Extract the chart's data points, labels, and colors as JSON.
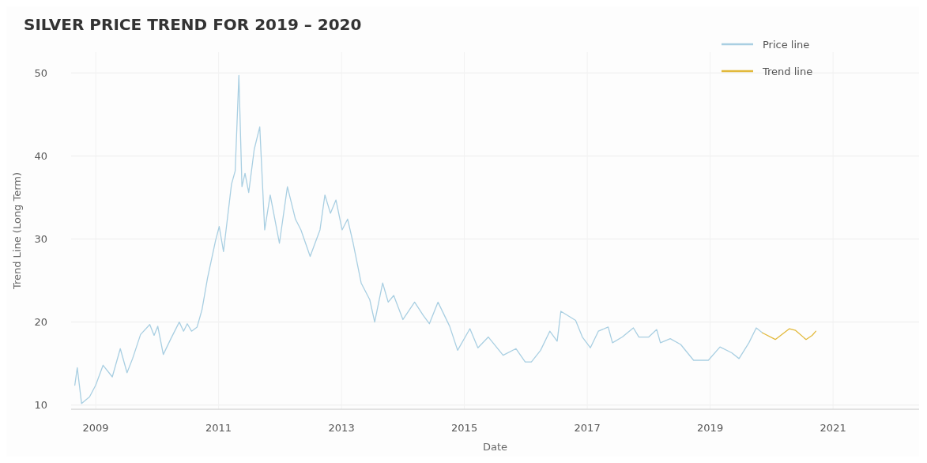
{
  "chart_data": {
    "type": "line",
    "title": "SILVER PRICE TREND FOR 2019 – 2020",
    "xlabel": "Date",
    "ylabel": "Trend Line (Long Term)",
    "xlim": [
      2008.6,
      2022.4
    ],
    "xticks": [
      2009,
      2011,
      2013,
      2015,
      2017,
      2019,
      2021
    ],
    "ylim": [
      9.5,
      52.5
    ],
    "yticks": [
      10,
      20,
      30,
      40,
      50
    ],
    "grid": true,
    "legend": "top right",
    "marker": "none",
    "line_style": "solid",
    "series": [
      {
        "name": "Price line",
        "color": "#a9cfe2",
        "x": [
          2008.66,
          2008.7,
          2008.77,
          2008.9,
          2009.0,
          2009.12,
          2009.27,
          2009.4,
          2009.51,
          2009.6,
          2009.73,
          2009.88,
          2009.95,
          2010.01,
          2010.1,
          2010.23,
          2010.36,
          2010.43,
          2010.49,
          2010.56,
          2010.65,
          2010.73,
          2010.82,
          2010.95,
          2011.01,
          2011.08,
          2011.21,
          2011.27,
          2011.33,
          2011.38,
          2011.43,
          2011.49,
          2011.58,
          2011.67,
          2011.75,
          2011.84,
          2011.99,
          2012.12,
          2012.25,
          2012.34,
          2012.49,
          2012.65,
          2012.73,
          2012.82,
          2012.91,
          2013.01,
          2013.1,
          2013.19,
          2013.32,
          2013.46,
          2013.54,
          2013.67,
          2013.76,
          2013.85,
          2014.0,
          2014.19,
          2014.33,
          2014.43,
          2014.57,
          2014.76,
          2014.89,
          2015.09,
          2015.22,
          2015.39,
          2015.63,
          2015.84,
          2015.99,
          2016.09,
          2016.24,
          2016.39,
          2016.51,
          2016.57,
          2016.68,
          2016.81,
          2016.92,
          2017.05,
          2017.18,
          2017.34,
          2017.41,
          2017.57,
          2017.75,
          2017.84,
          2018.0,
          2018.13,
          2018.19,
          2018.35,
          2018.52,
          2018.73,
          2018.97,
          2019.16,
          2019.35,
          2019.47,
          2019.63,
          2019.75,
          2019.85
        ],
        "values": [
          12.4,
          14.5,
          10.2,
          11,
          12.4,
          14.8,
          13.4,
          16.8,
          13.9,
          15.6,
          18.5,
          19.7,
          18.4,
          19.5,
          16.1,
          18.1,
          20,
          18.9,
          19.8,
          18.9,
          19.4,
          21.5,
          25.3,
          29.8,
          31.5,
          28.5,
          36.6,
          38.2,
          49.7,
          36.3,
          37.9,
          35.6,
          40.8,
          43.5,
          31.1,
          35.3,
          29.5,
          36.3,
          32.4,
          31.1,
          27.9,
          31.1,
          35.3,
          33.1,
          34.7,
          31.1,
          32.4,
          29.5,
          24.7,
          22.7,
          20,
          24.7,
          22.4,
          23.2,
          20.3,
          22.4,
          20.8,
          19.8,
          22.4,
          19.5,
          16.6,
          19.2,
          16.9,
          18.2,
          16,
          16.8,
          15.2,
          15.2,
          16.6,
          18.9,
          17.7,
          21.3,
          20.8,
          20.2,
          18.2,
          16.9,
          18.9,
          19.4,
          17.5,
          18.2,
          19.3,
          18.2,
          18.2,
          19.1,
          17.5,
          18,
          17.3,
          15.4,
          15.4,
          17,
          16.3,
          15.6,
          17.5,
          19.3,
          18.7
        ]
      },
      {
        "name": "Trend line",
        "color": "#e2b93b",
        "x": [
          2019.85,
          2020.06,
          2020.29,
          2020.39,
          2020.56,
          2020.66,
          2020.72
        ],
        "values": [
          18.7,
          17.9,
          19.2,
          19,
          17.9,
          18.4,
          18.9
        ]
      }
    ]
  }
}
